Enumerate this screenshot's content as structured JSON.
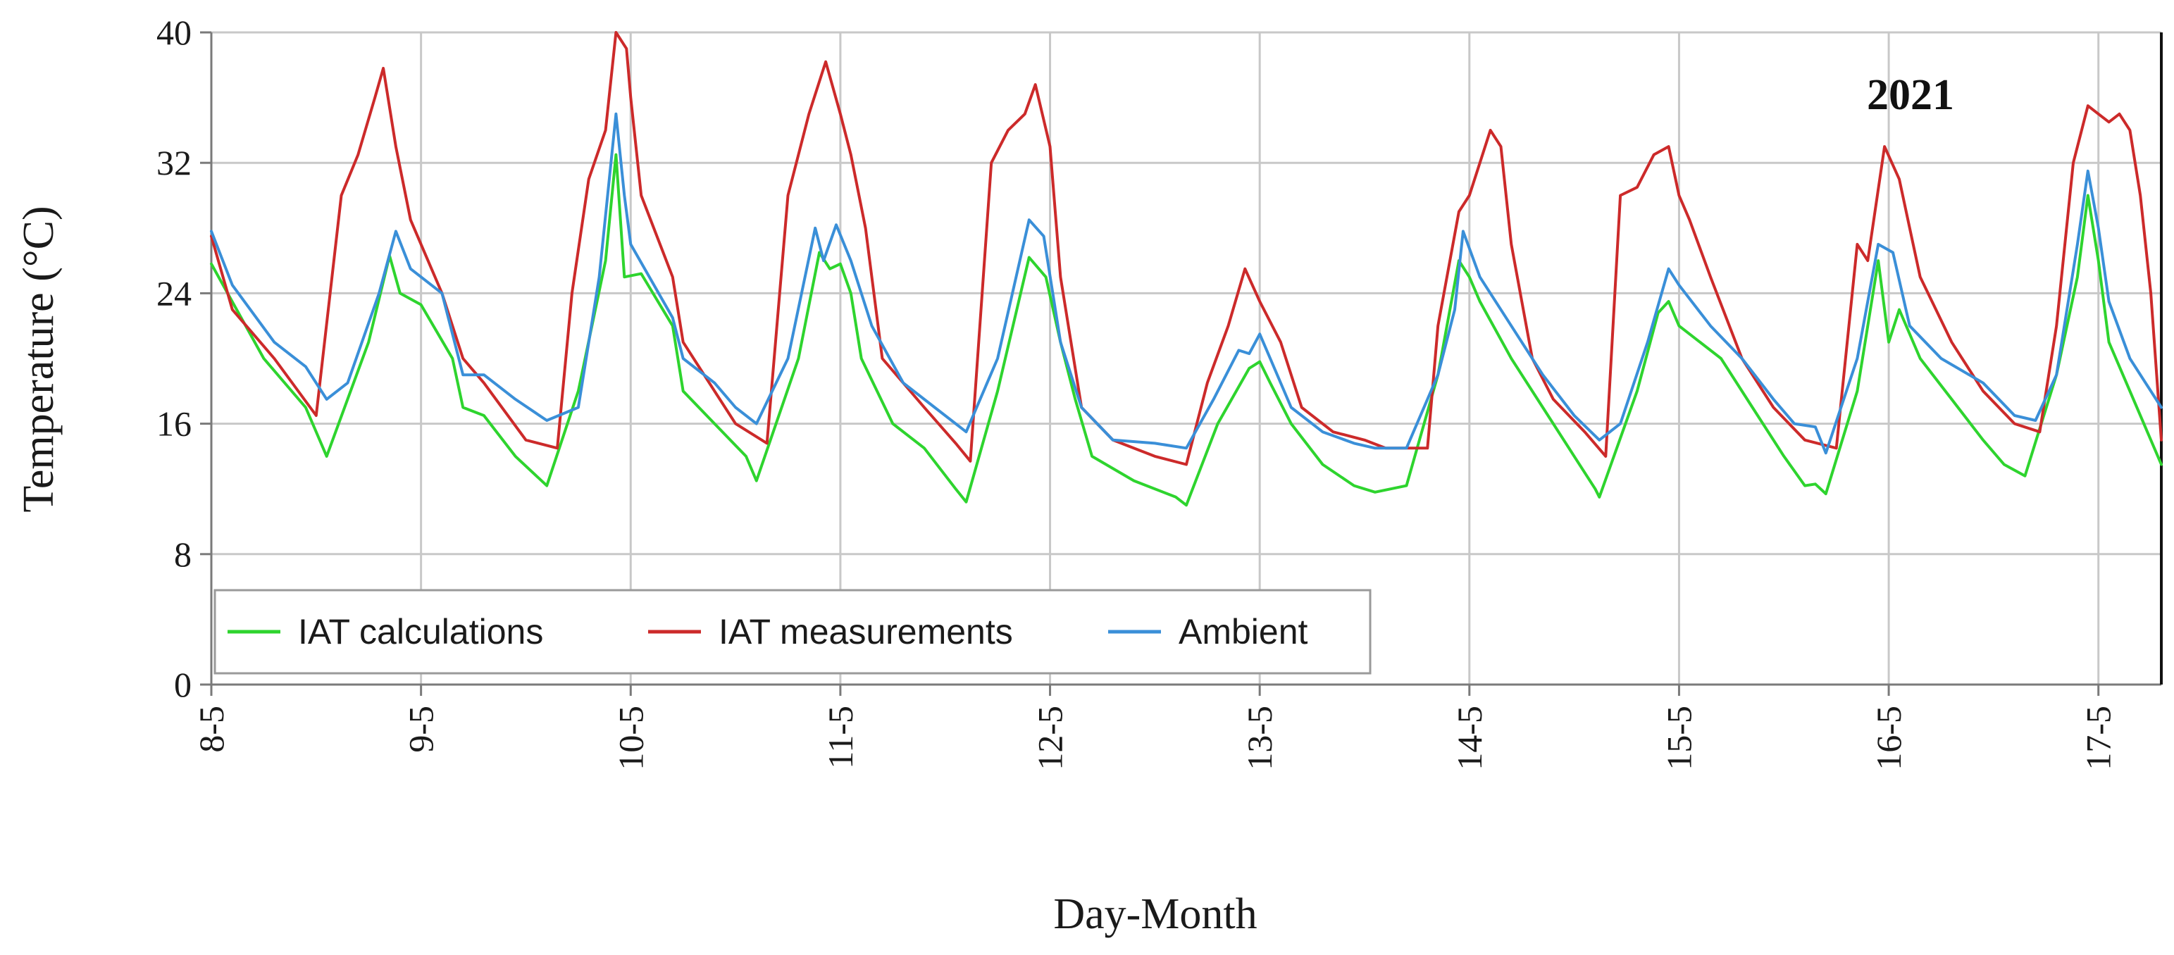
{
  "chart_data": {
    "type": "line",
    "xlabel": "Day-Month",
    "ylabel": "Temperature (°C)",
    "ylim": [
      0,
      40
    ],
    "yticks": [
      0,
      8,
      16,
      24,
      32,
      40
    ],
    "xlim": [
      0,
      9.3
    ],
    "xticks": [
      {
        "value": 0,
        "label": "8-5"
      },
      {
        "value": 1,
        "label": "9-5"
      },
      {
        "value": 2,
        "label": "10-5"
      },
      {
        "value": 3,
        "label": "11-5"
      },
      {
        "value": 4,
        "label": "12-5"
      },
      {
        "value": 5,
        "label": "13-5"
      },
      {
        "value": 6,
        "label": "14-5"
      },
      {
        "value": 7,
        "label": "15-5"
      },
      {
        "value": 8,
        "label": "16-5"
      },
      {
        "value": 9,
        "label": "17-5"
      }
    ],
    "grid": true,
    "legend_position": "bottom-left",
    "annotation": "2021",
    "series": [
      {
        "name": "IAT calculations",
        "color": "#2ed42e",
        "points": [
          [
            0,
            25.8
          ],
          [
            0.25,
            20
          ],
          [
            0.45,
            17
          ],
          [
            0.55,
            14
          ],
          [
            0.75,
            21
          ],
          [
            0.85,
            26.3
          ],
          [
            0.9,
            24
          ],
          [
            1.0,
            23.3
          ],
          [
            1.15,
            20
          ],
          [
            1.2,
            17
          ],
          [
            1.3,
            16.5
          ],
          [
            1.45,
            14
          ],
          [
            1.6,
            12.2
          ],
          [
            1.75,
            18
          ],
          [
            1.88,
            26
          ],
          [
            1.93,
            32.5
          ],
          [
            1.97,
            25
          ],
          [
            2.05,
            25.2
          ],
          [
            2.2,
            22
          ],
          [
            2.25,
            18
          ],
          [
            2.4,
            16
          ],
          [
            2.55,
            14
          ],
          [
            2.6,
            12.5
          ],
          [
            2.8,
            20
          ],
          [
            2.9,
            26.5
          ],
          [
            2.95,
            25.5
          ],
          [
            3.0,
            25.8
          ],
          [
            3.05,
            24
          ],
          [
            3.1,
            20
          ],
          [
            3.25,
            16
          ],
          [
            3.4,
            14.5
          ],
          [
            3.55,
            12
          ],
          [
            3.6,
            11.2
          ],
          [
            3.75,
            18
          ],
          [
            3.9,
            26.2
          ],
          [
            3.98,
            25
          ],
          [
            4.05,
            21
          ],
          [
            4.12,
            17.5
          ],
          [
            4.2,
            14
          ],
          [
            4.4,
            12.5
          ],
          [
            4.6,
            11.5
          ],
          [
            4.65,
            11
          ],
          [
            4.8,
            16
          ],
          [
            4.95,
            19.4
          ],
          [
            5.0,
            19.8
          ],
          [
            5.05,
            18.5
          ],
          [
            5.15,
            16
          ],
          [
            5.3,
            13.5
          ],
          [
            5.45,
            12.2
          ],
          [
            5.55,
            11.8
          ],
          [
            5.7,
            12.2
          ],
          [
            5.85,
            19
          ],
          [
            5.95,
            26
          ],
          [
            6.0,
            25
          ],
          [
            6.05,
            23.5
          ],
          [
            6.2,
            20
          ],
          [
            6.35,
            17
          ],
          [
            6.5,
            14
          ],
          [
            6.6,
            12
          ],
          [
            6.62,
            11.5
          ],
          [
            6.8,
            18
          ],
          [
            6.9,
            22.8
          ],
          [
            6.95,
            23.5
          ],
          [
            7.0,
            22
          ],
          [
            7.2,
            20
          ],
          [
            7.35,
            17
          ],
          [
            7.5,
            14
          ],
          [
            7.6,
            12.2
          ],
          [
            7.65,
            12.3
          ],
          [
            7.7,
            11.7
          ],
          [
            7.85,
            18
          ],
          [
            7.95,
            26
          ],
          [
            8.0,
            21
          ],
          [
            8.05,
            23
          ],
          [
            8.15,
            20
          ],
          [
            8.3,
            17.5
          ],
          [
            8.45,
            15
          ],
          [
            8.55,
            13.5
          ],
          [
            8.65,
            12.8
          ],
          [
            8.8,
            19
          ],
          [
            8.9,
            25
          ],
          [
            8.95,
            30
          ],
          [
            9.0,
            26
          ],
          [
            9.05,
            21
          ],
          [
            9.15,
            18
          ],
          [
            9.3,
            13.5
          ]
        ]
      },
      {
        "name": "IAT measurements",
        "color": "#cc2a2a",
        "points": [
          [
            0,
            27.5
          ],
          [
            0.1,
            23
          ],
          [
            0.3,
            20
          ],
          [
            0.5,
            16.5
          ],
          [
            0.62,
            30
          ],
          [
            0.7,
            32.5
          ],
          [
            0.78,
            36
          ],
          [
            0.82,
            37.8
          ],
          [
            0.88,
            33
          ],
          [
            0.95,
            28.5
          ],
          [
            1.1,
            24
          ],
          [
            1.2,
            20
          ],
          [
            1.3,
            18.5
          ],
          [
            1.5,
            15
          ],
          [
            1.65,
            14.5
          ],
          [
            1.72,
            24
          ],
          [
            1.8,
            31
          ],
          [
            1.88,
            34
          ],
          [
            1.93,
            40
          ],
          [
            1.98,
            39
          ],
          [
            2.0,
            36
          ],
          [
            2.05,
            30
          ],
          [
            2.2,
            25
          ],
          [
            2.25,
            21
          ],
          [
            2.4,
            18
          ],
          [
            2.5,
            16
          ],
          [
            2.65,
            14.8
          ],
          [
            2.75,
            30
          ],
          [
            2.85,
            35
          ],
          [
            2.93,
            38.2
          ],
          [
            3.0,
            35
          ],
          [
            3.05,
            32.5
          ],
          [
            3.12,
            28
          ],
          [
            3.2,
            20
          ],
          [
            3.4,
            17
          ],
          [
            3.55,
            14.8
          ],
          [
            3.62,
            13.7
          ],
          [
            3.72,
            32
          ],
          [
            3.8,
            34
          ],
          [
            3.88,
            35
          ],
          [
            3.93,
            36.8
          ],
          [
            4.0,
            33
          ],
          [
            4.05,
            25
          ],
          [
            4.15,
            17
          ],
          [
            4.3,
            15
          ],
          [
            4.5,
            14
          ],
          [
            4.65,
            13.5
          ],
          [
            4.75,
            18.5
          ],
          [
            4.85,
            22
          ],
          [
            4.93,
            25.5
          ],
          [
            5.0,
            23.5
          ],
          [
            5.1,
            21
          ],
          [
            5.2,
            17
          ],
          [
            5.35,
            15.5
          ],
          [
            5.5,
            15
          ],
          [
            5.6,
            14.5
          ],
          [
            5.8,
            14.5
          ],
          [
            5.85,
            22
          ],
          [
            5.95,
            29
          ],
          [
            6.0,
            30
          ],
          [
            6.05,
            32
          ],
          [
            6.1,
            34
          ],
          [
            6.15,
            33
          ],
          [
            6.2,
            27
          ],
          [
            6.3,
            20
          ],
          [
            6.4,
            17.5
          ],
          [
            6.55,
            15.5
          ],
          [
            6.65,
            14
          ],
          [
            6.72,
            30
          ],
          [
            6.8,
            30.5
          ],
          [
            6.88,
            32.5
          ],
          [
            6.95,
            33
          ],
          [
            7.0,
            30
          ],
          [
            7.05,
            28.5
          ],
          [
            7.15,
            25
          ],
          [
            7.3,
            20
          ],
          [
            7.45,
            17
          ],
          [
            7.6,
            15
          ],
          [
            7.75,
            14.5
          ],
          [
            7.85,
            27
          ],
          [
            7.9,
            26
          ],
          [
            7.98,
            33
          ],
          [
            8.05,
            31
          ],
          [
            8.1,
            28
          ],
          [
            8.15,
            25
          ],
          [
            8.3,
            21
          ],
          [
            8.45,
            18
          ],
          [
            8.6,
            16
          ],
          [
            8.72,
            15.5
          ],
          [
            8.8,
            22
          ],
          [
            8.88,
            32
          ],
          [
            8.95,
            35.5
          ],
          [
            9.0,
            35
          ],
          [
            9.05,
            34.5
          ],
          [
            9.1,
            35
          ],
          [
            9.15,
            34
          ],
          [
            9.2,
            30
          ],
          [
            9.25,
            24
          ],
          [
            9.3,
            15
          ]
        ]
      },
      {
        "name": "Ambient",
        "color": "#3a8fd8",
        "points": [
          [
            0,
            27.8
          ],
          [
            0.1,
            24.5
          ],
          [
            0.3,
            21
          ],
          [
            0.45,
            19.5
          ],
          [
            0.55,
            17.5
          ],
          [
            0.65,
            18.5
          ],
          [
            0.8,
            24
          ],
          [
            0.88,
            27.8
          ],
          [
            0.95,
            25.5
          ],
          [
            1.1,
            24
          ],
          [
            1.2,
            19
          ],
          [
            1.3,
            19
          ],
          [
            1.45,
            17.5
          ],
          [
            1.6,
            16.2
          ],
          [
            1.75,
            17
          ],
          [
            1.85,
            25
          ],
          [
            1.93,
            35
          ],
          [
            1.97,
            30
          ],
          [
            2.0,
            27
          ],
          [
            2.2,
            22.5
          ],
          [
            2.25,
            20
          ],
          [
            2.4,
            18.5
          ],
          [
            2.5,
            17
          ],
          [
            2.6,
            16
          ],
          [
            2.75,
            20
          ],
          [
            2.88,
            28
          ],
          [
            2.92,
            26
          ],
          [
            2.98,
            28.2
          ],
          [
            3.05,
            26
          ],
          [
            3.15,
            22
          ],
          [
            3.3,
            18.5
          ],
          [
            3.45,
            17
          ],
          [
            3.6,
            15.5
          ],
          [
            3.75,
            20
          ],
          [
            3.9,
            28.5
          ],
          [
            3.97,
            27.5
          ],
          [
            4.05,
            21
          ],
          [
            4.15,
            17
          ],
          [
            4.3,
            15
          ],
          [
            4.5,
            14.8
          ],
          [
            4.65,
            14.5
          ],
          [
            4.78,
            17.5
          ],
          [
            4.9,
            20.5
          ],
          [
            4.95,
            20.3
          ],
          [
            5.0,
            21.5
          ],
          [
            5.05,
            20
          ],
          [
            5.15,
            17
          ],
          [
            5.3,
            15.5
          ],
          [
            5.45,
            14.8
          ],
          [
            5.55,
            14.5
          ],
          [
            5.7,
            14.5
          ],
          [
            5.85,
            19
          ],
          [
            5.93,
            23
          ],
          [
            5.97,
            27.8
          ],
          [
            6.05,
            25
          ],
          [
            6.2,
            22
          ],
          [
            6.35,
            19
          ],
          [
            6.5,
            16.5
          ],
          [
            6.62,
            15
          ],
          [
            6.72,
            16
          ],
          [
            6.85,
            21
          ],
          [
            6.95,
            25.5
          ],
          [
            7.0,
            24.5
          ],
          [
            7.15,
            22
          ],
          [
            7.3,
            20
          ],
          [
            7.45,
            17.5
          ],
          [
            7.55,
            16
          ],
          [
            7.65,
            15.8
          ],
          [
            7.7,
            14.2
          ],
          [
            7.85,
            20
          ],
          [
            7.95,
            27
          ],
          [
            8.02,
            26.5
          ],
          [
            8.1,
            22
          ],
          [
            8.25,
            20
          ],
          [
            8.45,
            18.5
          ],
          [
            8.6,
            16.5
          ],
          [
            8.7,
            16.2
          ],
          [
            8.8,
            19
          ],
          [
            8.9,
            27
          ],
          [
            8.95,
            31.5
          ],
          [
            9.0,
            28
          ],
          [
            9.05,
            23.5
          ],
          [
            9.15,
            20
          ],
          [
            9.3,
            17
          ]
        ]
      }
    ]
  }
}
